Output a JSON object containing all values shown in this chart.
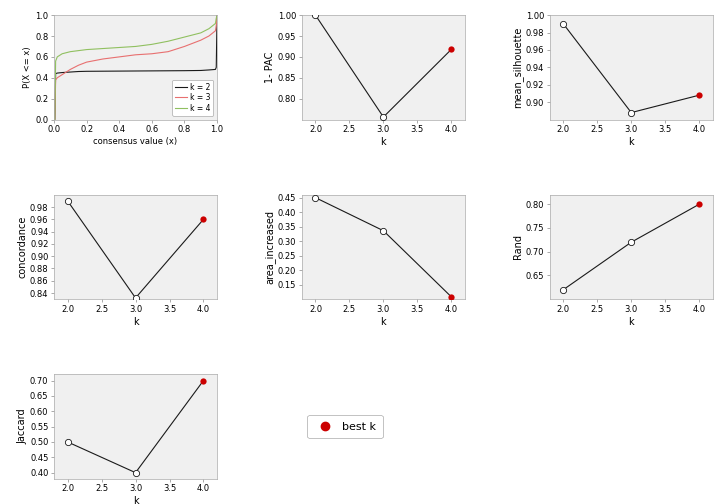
{
  "cdf": {
    "k2_x": [
      0.0,
      0.005,
      0.01,
      0.02,
      0.05,
      0.1,
      0.15,
      0.2,
      0.3,
      0.4,
      0.5,
      0.6,
      0.7,
      0.8,
      0.9,
      0.95,
      0.99,
      0.995,
      1.0
    ],
    "k2_y": [
      0.0,
      0.0,
      0.44,
      0.445,
      0.45,
      0.455,
      0.46,
      0.462,
      0.463,
      0.464,
      0.465,
      0.466,
      0.467,
      0.468,
      0.47,
      0.475,
      0.48,
      0.5,
      1.0
    ],
    "k3_x": [
      0.0,
      0.005,
      0.01,
      0.02,
      0.05,
      0.1,
      0.15,
      0.2,
      0.3,
      0.4,
      0.5,
      0.6,
      0.7,
      0.8,
      0.9,
      0.95,
      0.99,
      0.995,
      1.0
    ],
    "k3_y": [
      0.0,
      0.0,
      0.38,
      0.4,
      0.43,
      0.48,
      0.52,
      0.55,
      0.58,
      0.6,
      0.62,
      0.63,
      0.65,
      0.7,
      0.76,
      0.8,
      0.85,
      0.9,
      1.0
    ],
    "k4_x": [
      0.0,
      0.005,
      0.01,
      0.02,
      0.05,
      0.1,
      0.15,
      0.2,
      0.3,
      0.4,
      0.5,
      0.6,
      0.7,
      0.8,
      0.9,
      0.95,
      0.99,
      0.995,
      1.0
    ],
    "k4_y": [
      0.0,
      0.0,
      0.56,
      0.6,
      0.63,
      0.65,
      0.66,
      0.67,
      0.68,
      0.69,
      0.7,
      0.72,
      0.75,
      0.79,
      0.83,
      0.87,
      0.92,
      0.97,
      1.0
    ],
    "colors": [
      "#1a1a1a",
      "#e87070",
      "#90c060"
    ],
    "xlabel": "consensus value (x)",
    "ylabel": "P(X <= x)",
    "ylim": [
      0.0,
      1.0
    ],
    "xlim": [
      0.0,
      1.0
    ]
  },
  "pac": {
    "k": [
      2,
      3,
      4
    ],
    "y": [
      1.0,
      0.756,
      0.918
    ],
    "best_k": 4,
    "ylabel": "1- PAC",
    "xlabel": "k",
    "ylim": [
      0.75,
      1.0
    ],
    "yticks": [
      0.8,
      0.85,
      0.9,
      0.95,
      1.0
    ]
  },
  "silhouette": {
    "k": [
      2,
      3,
      4
    ],
    "y": [
      0.99,
      0.888,
      0.908
    ],
    "best_k": 4,
    "ylabel": "mean_silhouette",
    "xlabel": "k",
    "ylim": [
      0.88,
      1.0
    ],
    "yticks": [
      0.9,
      0.92,
      0.94,
      0.96,
      0.98,
      1.0
    ]
  },
  "concordance": {
    "k": [
      2,
      3,
      4
    ],
    "y": [
      0.99,
      0.832,
      0.96
    ],
    "best_k": 4,
    "ylabel": "concordance",
    "xlabel": "k",
    "ylim": [
      0.83,
      1.0
    ],
    "yticks": [
      0.84,
      0.86,
      0.88,
      0.9,
      0.92,
      0.94,
      0.96,
      0.98
    ]
  },
  "area_increased": {
    "k": [
      2,
      3,
      4
    ],
    "y": [
      0.45,
      0.336,
      0.108
    ],
    "best_k": 4,
    "ylabel": "area_increased",
    "xlabel": "k",
    "ylim": [
      0.1,
      0.46
    ],
    "yticks": [
      0.15,
      0.2,
      0.25,
      0.3,
      0.35,
      0.4,
      0.45
    ]
  },
  "rand": {
    "k": [
      2,
      3,
      4
    ],
    "y": [
      0.62,
      0.72,
      0.8
    ],
    "best_k": 4,
    "ylabel": "Rand",
    "xlabel": "k",
    "ylim": [
      0.6,
      0.82
    ],
    "yticks": [
      0.65,
      0.7,
      0.75,
      0.8
    ]
  },
  "jaccard": {
    "k": [
      2,
      3,
      4
    ],
    "y": [
      0.5,
      0.4,
      0.7
    ],
    "best_k": 4,
    "ylabel": "Jaccard",
    "xlabel": "k",
    "ylim": [
      0.38,
      0.72
    ],
    "yticks": [
      0.4,
      0.45,
      0.5,
      0.55,
      0.6,
      0.65,
      0.7
    ]
  },
  "bg_color": "#ffffff",
  "plot_bg": "#f0f0f0",
  "line_color": "#1a1a1a",
  "open_dot_color": "#ffffff",
  "closed_dot_color": "#cc0000",
  "dot_size": 4.5,
  "linewidth": 0.8,
  "tick_labelsize": 6,
  "axis_labelsize": 7
}
